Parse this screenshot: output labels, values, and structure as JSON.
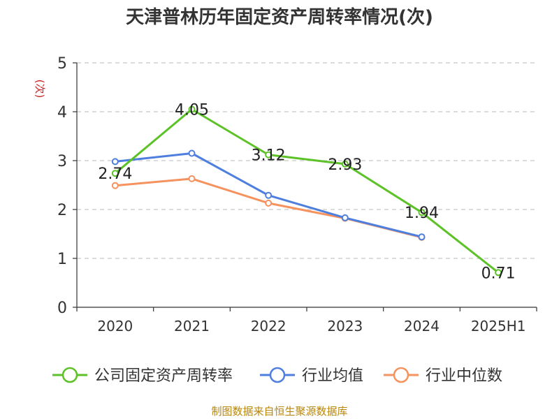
{
  "title": "天津普林历年固定资产周转率情况(次)",
  "source": "制图数据来自恒生聚源数据库",
  "chart_data": {
    "type": "line",
    "title": "天津普林历年固定资产周转率情况(次)",
    "ylabel": "(次)",
    "xlabel": "",
    "categories": [
      "2020",
      "2021",
      "2022",
      "2023",
      "2024",
      "2025H1"
    ],
    "ylim": [
      0,
      5
    ],
    "yticks": [
      0,
      1,
      2,
      3,
      4,
      5
    ],
    "grid": true,
    "legend_position": "bottom",
    "series": [
      {
        "name": "公司固定资产周转率",
        "color": "#5cc227",
        "values": [
          2.74,
          4.05,
          3.12,
          2.93,
          1.94,
          0.71
        ],
        "labels": [
          "2.74",
          "4.05",
          "3.12",
          "2.93",
          "1.94",
          "0.71"
        ]
      },
      {
        "name": "行业均值",
        "color": "#4f7fde",
        "values": [
          2.98,
          3.15,
          2.29,
          1.83,
          1.44,
          null
        ]
      },
      {
        "name": "行业中位数",
        "color": "#f5925e",
        "values": [
          2.49,
          2.63,
          2.13,
          1.82,
          1.43,
          null
        ]
      }
    ]
  }
}
